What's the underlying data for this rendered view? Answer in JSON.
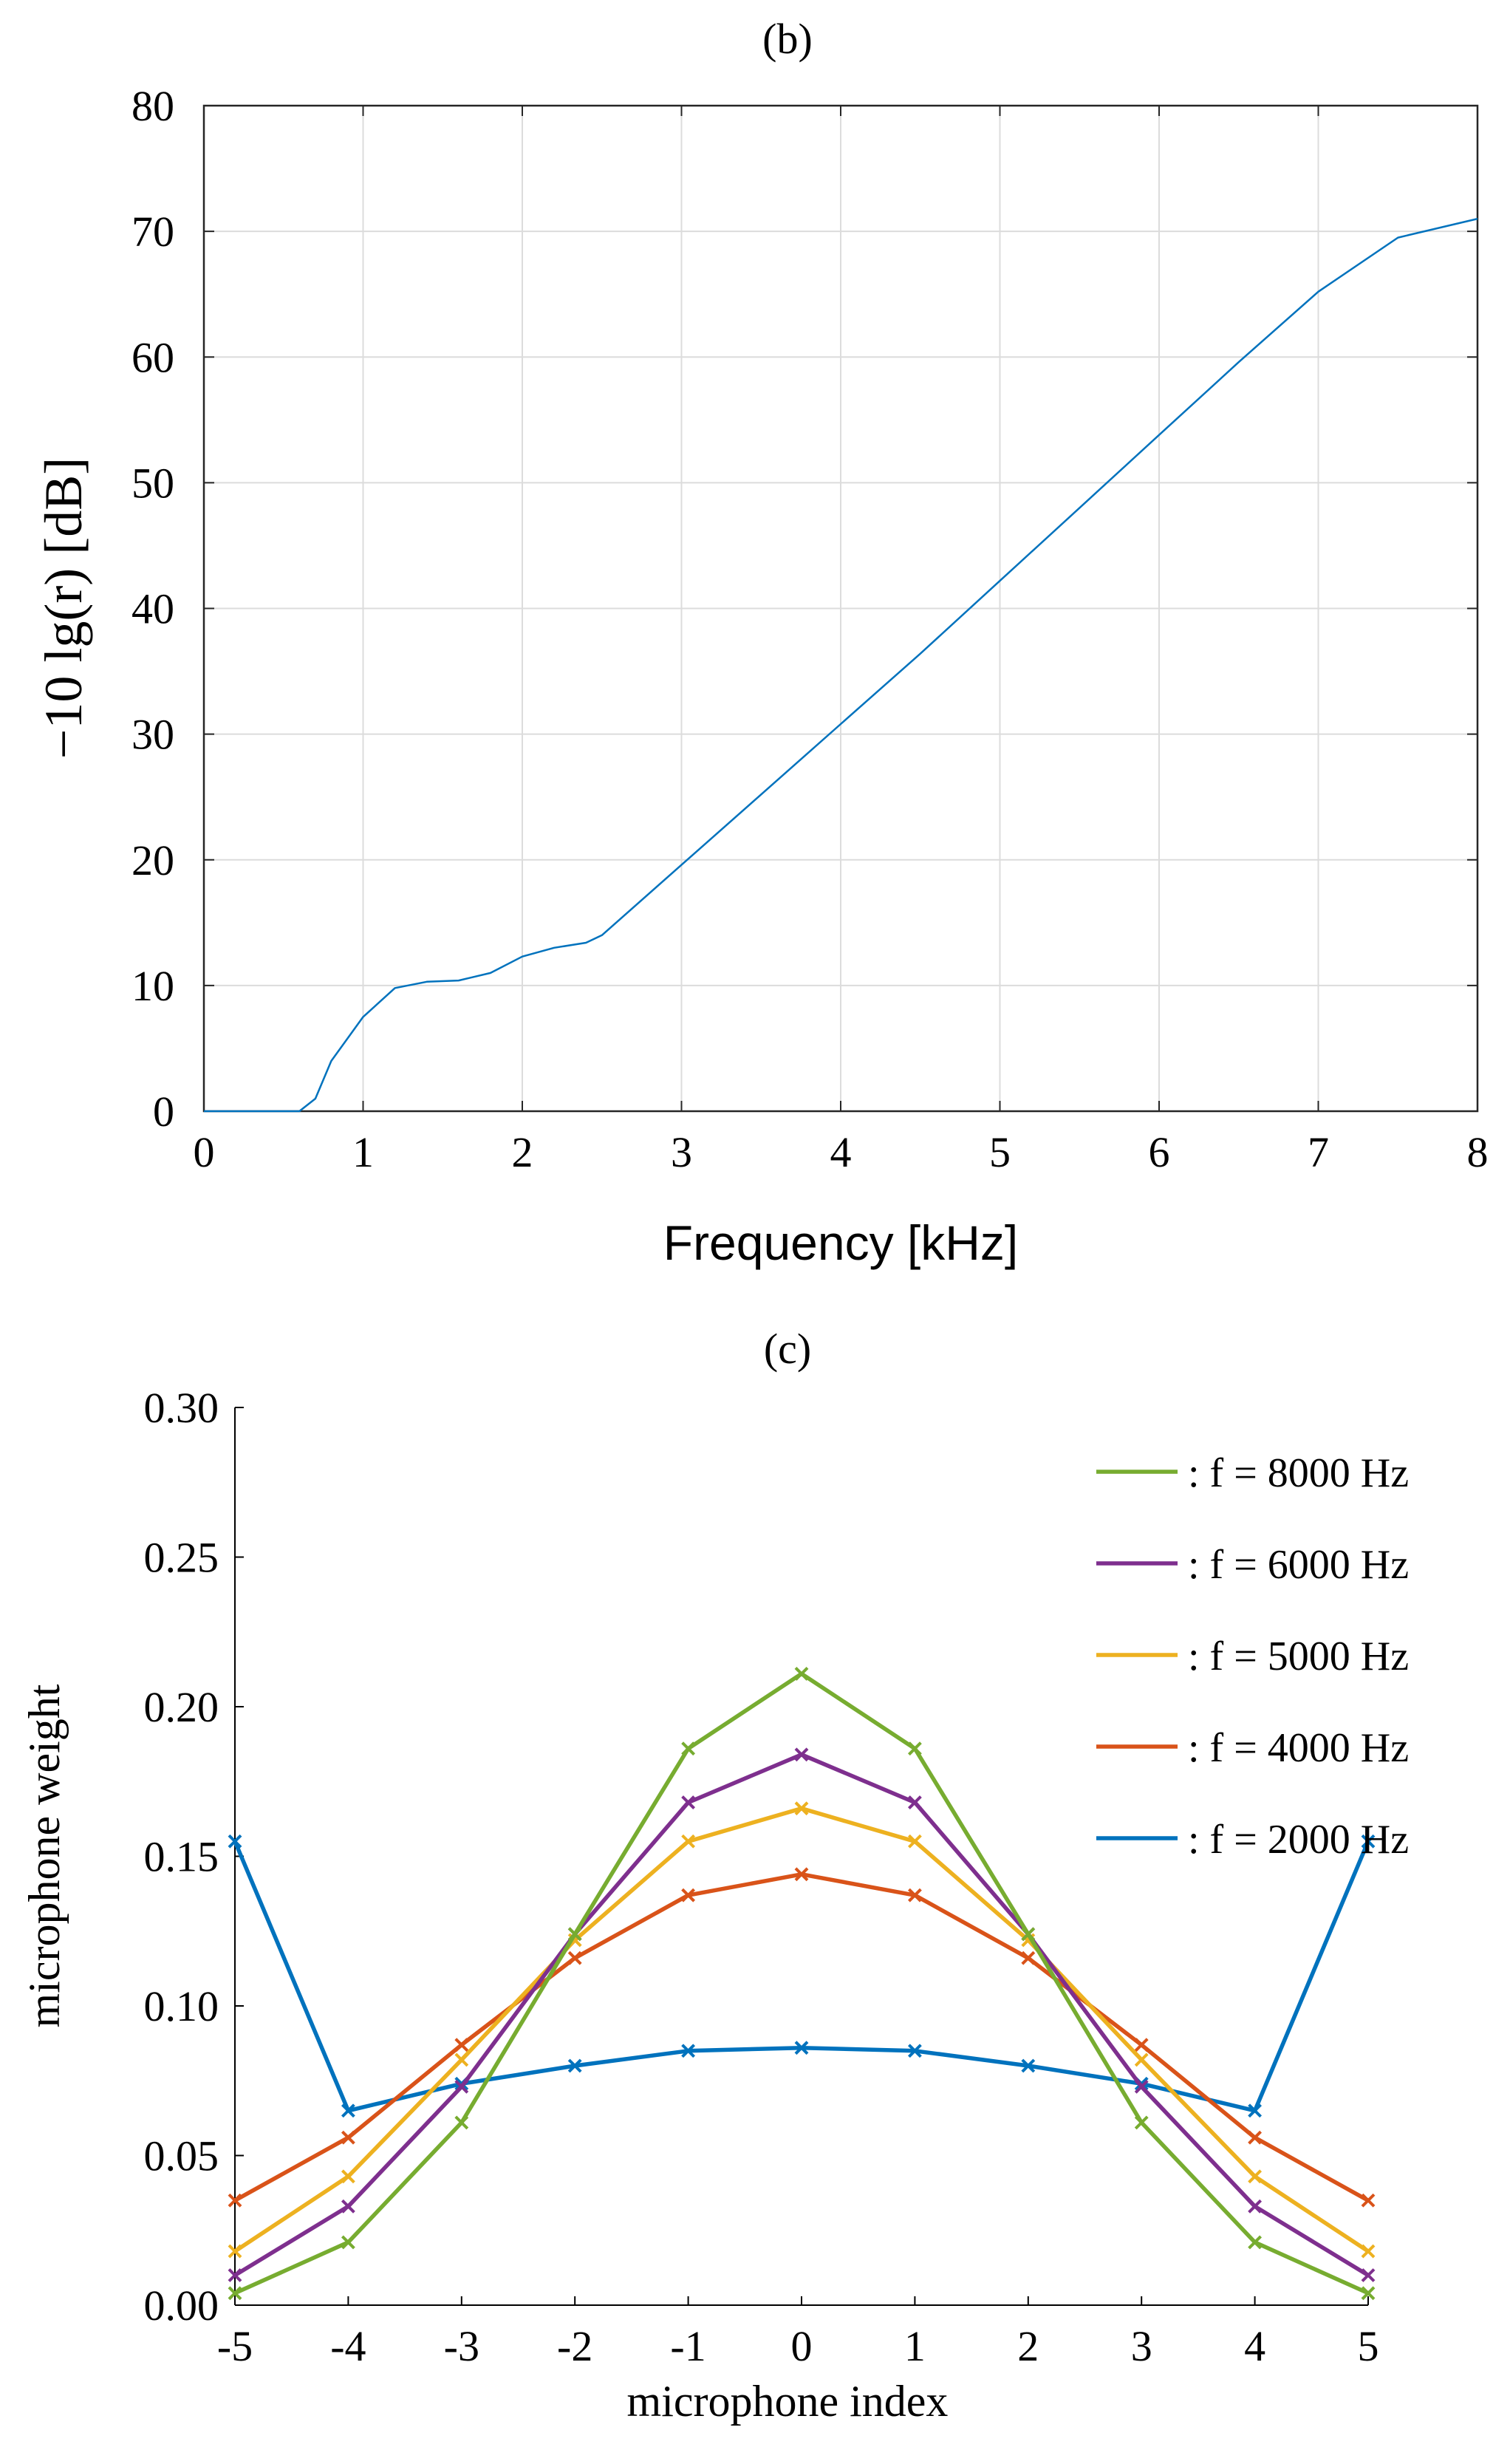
{
  "chart_data": [
    {
      "type": "line",
      "title": "(b)",
      "xlabel": "Frequency [kHz]",
      "ylabel": "−10 lg(r) [dB]",
      "xlim": [
        0,
        8
      ],
      "ylim": [
        0,
        80
      ],
      "xticks": [
        "0",
        "1",
        "2",
        "3",
        "4",
        "5",
        "6",
        "7",
        "8"
      ],
      "yticks": [
        "0",
        "10",
        "20",
        "30",
        "40",
        "50",
        "60",
        "70",
        "80"
      ],
      "grid": true,
      "color": "#0072BD",
      "series": [
        {
          "name": "-10 lg(r)",
          "x": [
            0,
            0.6,
            0.7,
            0.8,
            1.0,
            1.2,
            1.4,
            1.6,
            1.8,
            2.0,
            2.2,
            2.4,
            2.5,
            3.0,
            3.5,
            4.0,
            4.5,
            5.0,
            5.5,
            6.0,
            6.5,
            7.0,
            7.5,
            8.0
          ],
          "y": [
            0,
            0,
            1,
            4,
            7.5,
            9.8,
            10.3,
            10.4,
            11.0,
            12.3,
            13.0,
            13.4,
            14.0,
            19.6,
            25.2,
            30.8,
            36.4,
            42.2,
            48.0,
            53.8,
            59.6,
            65.2,
            69.5,
            71.0
          ]
        }
      ]
    },
    {
      "type": "line",
      "title": "(c)",
      "xlabel": "microphone index",
      "ylabel": "microphone weight",
      "xlim": [
        -5,
        5
      ],
      "ylim": [
        0,
        0.3
      ],
      "xticks": [
        "-5",
        "-4",
        "-3",
        "-2",
        "-1",
        "0",
        "1",
        "2",
        "3",
        "4",
        "5"
      ],
      "yticks": [
        "0.00",
        "0.05",
        "0.10",
        "0.15",
        "0.20",
        "0.25",
        "0.30"
      ],
      "grid": false,
      "legend_position": "top-right",
      "x": [
        -5,
        -4,
        -3,
        -2,
        -1,
        0,
        1,
        2,
        3,
        4,
        5
      ],
      "series": [
        {
          "name": ": f = 8000 Hz",
          "color": "#77AC30",
          "values": [
            0.004,
            0.021,
            0.061,
            0.124,
            0.186,
            0.211,
            0.186,
            0.124,
            0.061,
            0.021,
            0.004
          ]
        },
        {
          "name": ": f = 6000 Hz",
          "color": "#7E2F8E",
          "values": [
            0.01,
            0.033,
            0.073,
            0.124,
            0.168,
            0.184,
            0.168,
            0.124,
            0.073,
            0.033,
            0.01
          ]
        },
        {
          "name": ": f = 5000 Hz",
          "color": "#EDB120",
          "values": [
            0.018,
            0.043,
            0.082,
            0.122,
            0.155,
            0.166,
            0.155,
            0.122,
            0.082,
            0.043,
            0.018
          ]
        },
        {
          "name": ": f = 4000 Hz",
          "color": "#D95319",
          "values": [
            0.035,
            0.056,
            0.087,
            0.116,
            0.137,
            0.144,
            0.137,
            0.116,
            0.087,
            0.056,
            0.035
          ]
        },
        {
          "name": ": f = 2000 Hz",
          "color": "#0072BD",
          "values": [
            0.155,
            0.065,
            0.074,
            0.08,
            0.085,
            0.086,
            0.085,
            0.08,
            0.074,
            0.065,
            0.155
          ]
        }
      ]
    }
  ]
}
